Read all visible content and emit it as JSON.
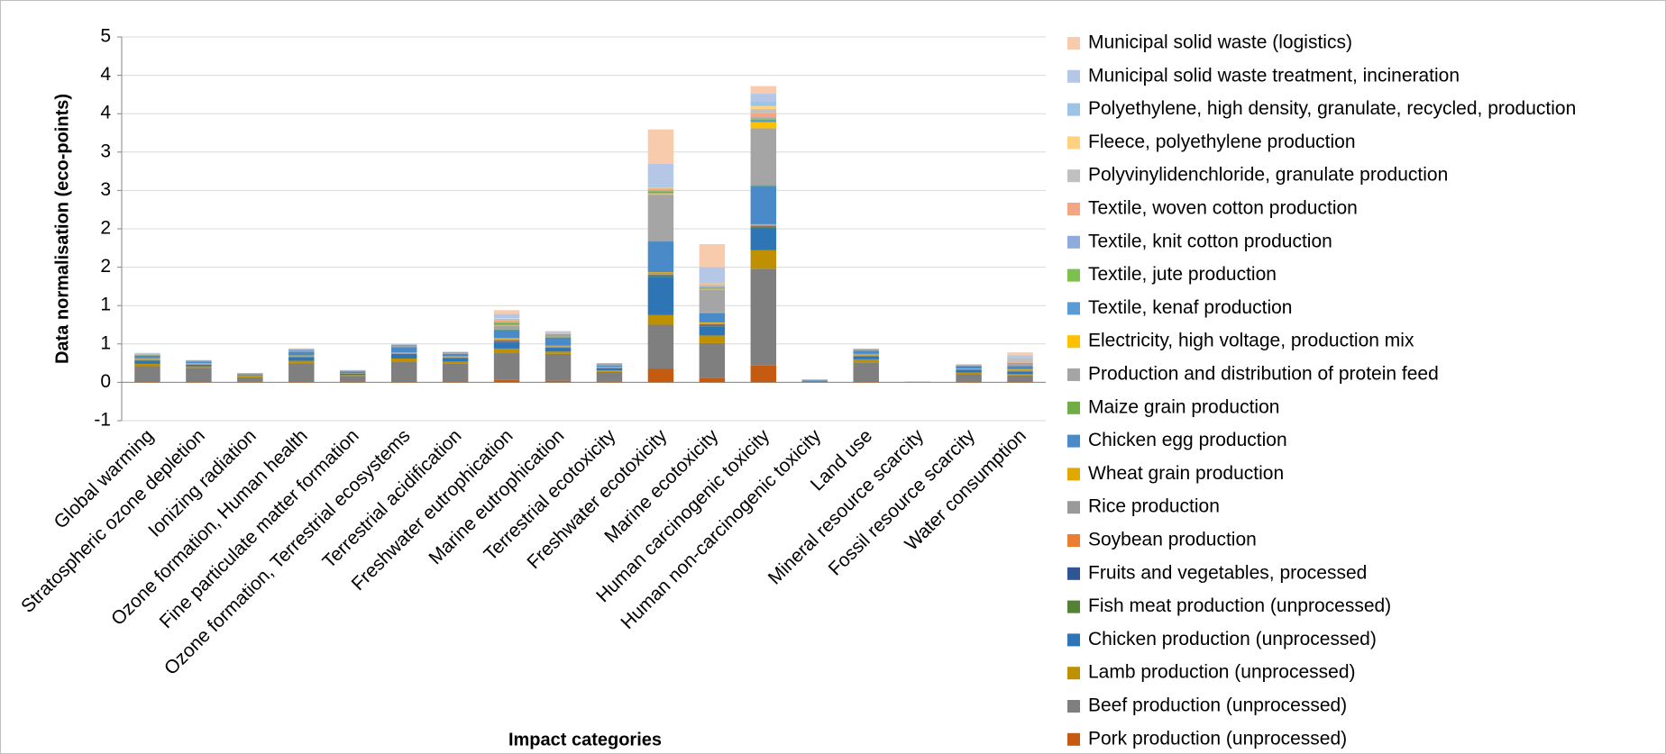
{
  "chart_data": {
    "type": "bar",
    "stacked": true,
    "grid": true,
    "legend": "right",
    "x_label": "Impact categories",
    "y_label": "Data normalisation (eco-points)",
    "ylim": [
      -0.5,
      4.5
    ],
    "yticks": [
      {
        "value": -0.5,
        "label": "-1"
      },
      0,
      {
        "value": 0.5,
        "label": "1"
      },
      1,
      {
        "value": 1.5,
        "label": "2"
      },
      2,
      {
        "value": 2.5,
        "label": "3"
      },
      3,
      {
        "value": 3.5,
        "label": "4"
      },
      4,
      {
        "value": 4.5,
        "label": "5"
      }
    ],
    "categories": [
      "Global warming",
      "Stratospheric ozone depletion",
      "Ionizing radiation",
      "Ozone formation, Human health",
      "Fine particulate matter formation",
      "Ozone formation, Terrestrial ecosystems",
      "Terrestrial acidification",
      "Freshwater eutrophication",
      "Marine eutrophication",
      "Terrestrial ecotoxicity",
      "Freshwater ecotoxicity",
      "Marine ecotoxicity",
      "Human carcinogenic toxicity",
      "Human non-carcinogenic toxicity",
      "Land use",
      "Mineral resource scarcity",
      "Fossil resource scarcity",
      "Water consumption"
    ],
    "series": [
      {
        "name": "Pork production (unprocessed)",
        "color": "#c55a11",
        "values": [
          0.01,
          0.01,
          0.005,
          0.01,
          0.005,
          0.01,
          0.01,
          0.03,
          0.02,
          0.005,
          0.18,
          0.06,
          0.22,
          0,
          0.01,
          0,
          0.005,
          0.01
        ]
      },
      {
        "name": "Beef production (unprocessed)",
        "color": "#7f7f7f",
        "values": [
          0.2,
          0.18,
          0.06,
          0.24,
          0.08,
          0.26,
          0.23,
          0.35,
          0.35,
          0.13,
          0.57,
          0.45,
          1.26,
          0.02,
          0.25,
          0.005,
          0.1,
          0.08
        ]
      },
      {
        "name": "Lamb production (unprocessed)",
        "color": "#bf9000",
        "values": [
          0.03,
          0.02,
          0.02,
          0.03,
          0.01,
          0.04,
          0.03,
          0.06,
          0.03,
          0.02,
          0.125,
          0.1,
          0.24,
          0,
          0.04,
          0,
          0.02,
          0.02
        ]
      },
      {
        "name": "Chicken production (unprocessed)",
        "color": "#2e75b6",
        "values": [
          0.04,
          0.02,
          0.01,
          0.05,
          0.02,
          0.06,
          0.05,
          0.08,
          0.05,
          0.03,
          0.5,
          0.12,
          0.28,
          0.005,
          0.04,
          0,
          0.04,
          0.03
        ]
      },
      {
        "name": "Fish meat production (unprocessed)",
        "color": "#548235",
        "values": [
          0.005,
          0,
          0,
          0,
          0,
          0,
          0,
          0.01,
          0,
          0,
          0.01,
          0.01,
          0.02,
          0,
          0,
          0,
          0,
          0
        ]
      },
      {
        "name": "Fruits and vegetables, processed",
        "color": "#2f5597",
        "values": [
          0.005,
          0,
          0,
          0,
          0,
          0,
          0,
          0.01,
          0.005,
          0,
          0.01,
          0.01,
          0.01,
          0,
          0,
          0,
          0,
          0
        ]
      },
      {
        "name": "Soybean production",
        "color": "#ed7d31",
        "values": [
          0.005,
          0,
          0,
          0,
          0,
          0,
          0,
          0.01,
          0.005,
          0,
          0.01,
          0.01,
          0.01,
          0,
          0,
          0,
          0,
          0
        ]
      },
      {
        "name": "Rice production",
        "color": "#999999",
        "values": [
          0.01,
          0.01,
          0,
          0.01,
          0,
          0.01,
          0.01,
          0.01,
          0.01,
          0.01,
          0.02,
          0.01,
          0.01,
          0,
          0.01,
          0,
          0.005,
          0.02
        ]
      },
      {
        "name": "Wheat grain production",
        "color": "#e0a800",
        "values": [
          0.01,
          0.01,
          0.01,
          0.01,
          0.005,
          0.01,
          0.01,
          0.02,
          0.01,
          0.005,
          0.01,
          0.01,
          0.01,
          0,
          0.02,
          0,
          0.01,
          0.01
        ]
      },
      {
        "name": "Chicken egg production",
        "color": "#4a8ac8",
        "values": [
          0.03,
          0.02,
          0.005,
          0.05,
          0.02,
          0.07,
          0.03,
          0.1,
          0.1,
          0.02,
          0.4,
          0.12,
          0.5,
          0.005,
          0.04,
          0,
          0.03,
          0.04
        ]
      },
      {
        "name": "Maize grain production",
        "color": "#70ad47",
        "values": [
          0.005,
          0,
          0,
          0,
          0,
          0,
          0,
          0.01,
          0.005,
          0,
          0.01,
          0.01,
          0.01,
          0,
          0,
          0,
          0,
          0
        ]
      },
      {
        "name": "Production and distribution of protein feed",
        "color": "#a5a5a5",
        "values": [
          0.01,
          0.01,
          0.01,
          0.02,
          0.01,
          0.02,
          0.01,
          0.05,
          0.03,
          0.02,
          0.6,
          0.3,
          0.74,
          0.005,
          0.02,
          0.005,
          0.01,
          0.03
        ]
      },
      {
        "name": "Electricity, high voltage, production mix",
        "color": "#ffc000",
        "values": [
          0.005,
          0,
          0,
          0,
          0,
          0,
          0,
          0.01,
          0,
          0,
          0.02,
          0.01,
          0.08,
          0,
          0,
          0,
          0,
          0
        ]
      },
      {
        "name": "Textile, kenaf production",
        "color": "#5b9bd5",
        "values": [
          0.005,
          0.005,
          0,
          0.01,
          0.005,
          0.01,
          0.01,
          0.02,
          0.01,
          0.005,
          0.02,
          0.01,
          0.03,
          0,
          0.005,
          0,
          0.005,
          0.01
        ]
      },
      {
        "name": "Textile, jute production",
        "color": "#7cc04e",
        "values": [
          0,
          0,
          0,
          0,
          0,
          0,
          0,
          0.01,
          0,
          0,
          0.01,
          0.01,
          0.01,
          0,
          0,
          0,
          0,
          0
        ]
      },
      {
        "name": "Textile, knit cotton production",
        "color": "#8faadc",
        "values": [
          0,
          0,
          0,
          0,
          0,
          0,
          0,
          0.01,
          0,
          0,
          0.01,
          0.01,
          0.02,
          0,
          0,
          0,
          0,
          0
        ]
      },
      {
        "name": "Textile, woven cotton production",
        "color": "#f4a582",
        "values": [
          0,
          0,
          0,
          0,
          0,
          0,
          0,
          0.02,
          0.005,
          0,
          0.02,
          0.02,
          0.06,
          0,
          0,
          0,
          0,
          0.01
        ]
      },
      {
        "name": "Polyvinylidenchloride, granulate  production",
        "color": "#c0c0c0",
        "values": [
          0.005,
          0.005,
          0,
          0.005,
          0,
          0.005,
          0.005,
          0.02,
          0.01,
          0,
          0.01,
          0.01,
          0.05,
          0,
          0.005,
          0,
          0.005,
          0.06
        ]
      },
      {
        "name": "Fleece, polyethylene production",
        "color": "#ffd27f",
        "values": [
          0,
          0,
          0,
          0,
          0,
          0,
          0,
          0.01,
          0,
          0,
          0.01,
          0.01,
          0.04,
          0,
          0,
          0,
          0,
          0
        ]
      },
      {
        "name": "Polyethylene, high density, granulate, recycled, production",
        "color": "#9dc3e6",
        "values": [
          0,
          0,
          0,
          0,
          0,
          0,
          0,
          0.02,
          0.01,
          0,
          0.02,
          0.01,
          0.06,
          0,
          0,
          0,
          0,
          0.01
        ]
      },
      {
        "name": "Municipal solid waste treatment, incineration",
        "color": "#b4c7e7",
        "values": [
          0.005,
          0,
          0,
          0.005,
          0.005,
          0.005,
          0.005,
          0.03,
          0.01,
          0.005,
          0.28,
          0.2,
          0.1,
          0.005,
          0,
          0,
          0.005,
          0.02
        ]
      },
      {
        "name": "Municipal solid waste (logistics)",
        "color": "#f8cbad",
        "values": [
          0.005,
          0,
          0,
          0.005,
          0,
          0,
          0,
          0.05,
          0.01,
          0,
          0.45,
          0.3,
          0.1,
          0,
          0,
          0,
          0.005,
          0.04
        ]
      }
    ]
  }
}
